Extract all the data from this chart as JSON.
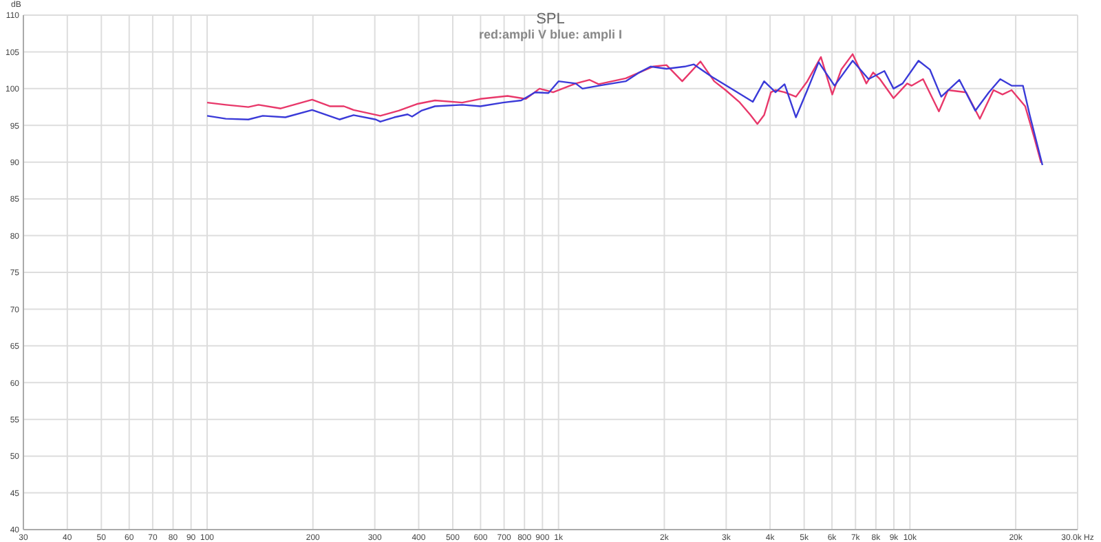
{
  "chart_data": {
    "type": "line",
    "title": "SPL",
    "subtitle": "red:ampli V blue: ampli I",
    "ylabel": "dB",
    "log": "x",
    "xlim": [
      30,
      30000
    ],
    "xticks": [
      30,
      40,
      50,
      60,
      70,
      80,
      90,
      100,
      200,
      300,
      400,
      500,
      600,
      700,
      800,
      900,
      {
        "value": 1000,
        "label": "1k"
      },
      {
        "value": 2000,
        "label": "2k"
      },
      {
        "value": 3000,
        "label": "3k"
      },
      {
        "value": 4000,
        "label": "4k"
      },
      {
        "value": 5000,
        "label": "5k"
      },
      {
        "value": 6000,
        "label": "6k"
      },
      {
        "value": 7000,
        "label": "7k"
      },
      {
        "value": 8000,
        "label": "8k"
      },
      {
        "value": 9000,
        "label": "9k"
      },
      {
        "value": 10000,
        "label": "10k"
      },
      {
        "value": 20000,
        "label": "20k"
      },
      {
        "value": 30000,
        "label": "30.0k Hz"
      }
    ],
    "ylim": [
      40,
      110
    ],
    "yticks": [
      40,
      45,
      50,
      55,
      60,
      65,
      70,
      75,
      80,
      85,
      90,
      95,
      100,
      105,
      110
    ],
    "grid": true,
    "marker": "none",
    "line_style": "solid",
    "series": [
      {
        "color": "#e8386a",
        "x": [
          100,
          113,
          131,
          140,
          162,
          199,
          224,
          245,
          261,
          311,
          351,
          395,
          445,
          532,
          599,
          716,
          807,
          883,
          965,
          1119,
          1224,
          1300,
          1553,
          1698,
          1856,
          2029,
          2249,
          2535,
          2773,
          2988,
          3266,
          3518,
          3680,
          3846,
          4022,
          4144,
          4398,
          4738,
          5104,
          5580,
          6011,
          6378,
          6871,
          7516,
          7856,
          8213,
          8981,
          9818,
          10115,
          10897,
          12090,
          12835,
          14454,
          15809,
          17290,
          18340,
          19466,
          21280,
          22590,
          23618
        ],
        "values": [
          98.1,
          97.8,
          97.5,
          97.8,
          97.3,
          98.5,
          97.6,
          97.6,
          97.1,
          96.3,
          97.0,
          97.9,
          98.4,
          98.1,
          98.6,
          99.0,
          98.6,
          100.0,
          99.5,
          100.7,
          101.2,
          100.6,
          101.4,
          102.2,
          103.0,
          103.2,
          101.0,
          103.7,
          101.0,
          99.8,
          98.2,
          96.4,
          95.2,
          96.4,
          99.5,
          99.8,
          99.5,
          98.9,
          101.0,
          104.3,
          99.2,
          102.6,
          104.7,
          100.7,
          102.2,
          101.3,
          98.7,
          100.7,
          100.4,
          101.3,
          96.9,
          99.8,
          99.5,
          95.9,
          99.8,
          99.2,
          99.8,
          97.6,
          93.3,
          89.9
        ]
      },
      {
        "color": "#3a3ad8",
        "x": [
          100,
          113,
          131,
          144,
          167,
          199,
          238,
          261,
          302,
          311,
          341,
          372,
          383,
          407,
          445,
          532,
          599,
          695,
          783,
          857,
          936,
          1000,
          1119,
          1170,
          1300,
          1553,
          1698,
          1828,
          2029,
          2285,
          2425,
          2733,
          3077,
          3571,
          3846,
          4144,
          4398,
          4738,
          5104,
          5498,
          6101,
          6871,
          7625,
          8460,
          8981,
          9532,
          10578,
          11394,
          12274,
          13823,
          15346,
          16774,
          18070,
          19466,
          20966,
          21921,
          23824
        ],
        "values": [
          96.3,
          95.9,
          95.8,
          96.3,
          96.1,
          97.1,
          95.8,
          96.4,
          95.8,
          95.5,
          96.1,
          96.5,
          96.2,
          97.0,
          97.6,
          97.8,
          97.6,
          98.1,
          98.4,
          99.5,
          99.4,
          101.0,
          100.7,
          100.0,
          100.4,
          101.0,
          102.2,
          103.0,
          102.7,
          103.0,
          103.3,
          101.6,
          100.1,
          98.2,
          101.0,
          99.5,
          100.6,
          96.1,
          99.8,
          103.6,
          100.4,
          103.8,
          101.3,
          102.4,
          100.0,
          100.7,
          103.8,
          102.6,
          98.9,
          101.2,
          97.0,
          99.5,
          101.3,
          100.4,
          100.4,
          96.4,
          89.6
        ]
      }
    ]
  }
}
